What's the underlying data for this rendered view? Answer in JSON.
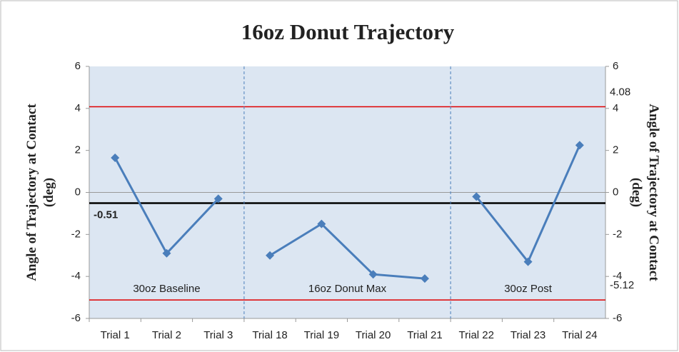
{
  "chart_data": {
    "type": "line",
    "title": "16oz Donut Trajectory",
    "ylabel": [
      "Angle of Trajectory at Contact",
      "(deg)"
    ],
    "y2label": [
      "Angle of Trajectory at Contact",
      "(deg)"
    ],
    "categories": [
      "Trial 1",
      "Trial 2",
      "Trial 3",
      "Trial 18",
      "Trial 19",
      "Trial 20",
      "Trial 21",
      "Trial 22",
      "Trial 23",
      "Trial 24"
    ],
    "series": [
      {
        "name": "30oz Baseline",
        "color": "#4a7ebb",
        "values": [
          1.65,
          -2.9,
          -0.3,
          null,
          null,
          null,
          null,
          null,
          null,
          null
        ]
      },
      {
        "name": "16oz Donut Max",
        "color": "#4a7ebb",
        "values": [
          null,
          null,
          null,
          -3.0,
          -1.5,
          -3.9,
          -4.1,
          null,
          null,
          null
        ]
      },
      {
        "name": "30oz Post",
        "color": "#4a7ebb",
        "values": [
          null,
          null,
          null,
          null,
          null,
          null,
          null,
          -0.2,
          -3.3,
          2.25
        ]
      }
    ],
    "reference_lines": [
      {
        "value": 4.08,
        "color": "#e00000"
      },
      {
        "value": -5.12,
        "color": "#e00000"
      },
      {
        "value": -0.51,
        "color": "#000000"
      }
    ],
    "ylim": [
      -6,
      6
    ],
    "yticks": [
      -6,
      -4,
      -2,
      0,
      2,
      4,
      6
    ],
    "y2lim": [
      -6,
      6
    ],
    "y2ticks": [
      -6,
      -4,
      -2,
      0,
      2,
      4,
      6
    ]
  }
}
